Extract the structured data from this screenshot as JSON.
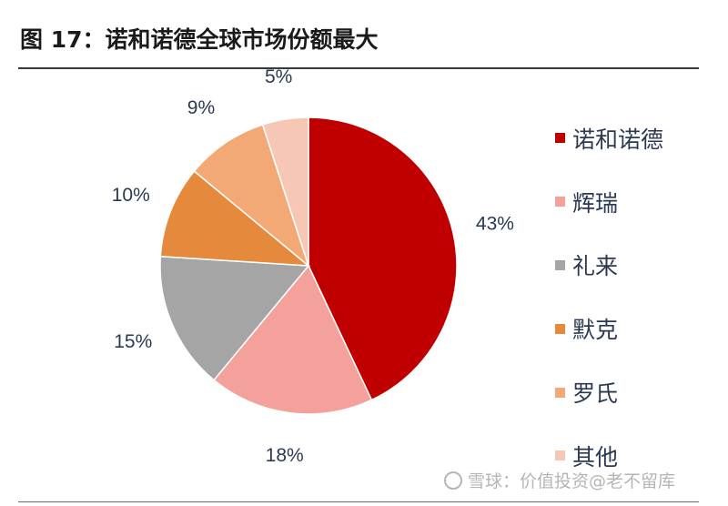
{
  "figure": {
    "title": "图 17：诺和诺德全球市场份额最大"
  },
  "chart_data": {
    "type": "pie",
    "title": "图 17：诺和诺德全球市场份额最大",
    "slices": [
      {
        "label": "诺和诺德",
        "value": 43,
        "display": "43%",
        "color": "#c00000"
      },
      {
        "label": "辉瑞",
        "value": 18,
        "display": "18%",
        "color": "#f4a19b"
      },
      {
        "label": "礼来",
        "value": 15,
        "display": "15%",
        "color": "#a5a5a5"
      },
      {
        "label": "默克",
        "value": 10,
        "display": "10%",
        "color": "#e58a3c"
      },
      {
        "label": "罗氏",
        "value": 9,
        "display": "9%",
        "color": "#f3a975"
      },
      {
        "label": "其他",
        "value": 5,
        "display": "5%",
        "color": "#f7c7b5"
      }
    ],
    "legend_position": "right",
    "label_color": "#2b3a52"
  },
  "watermark": {
    "text": "雪球：价值投资@老不留库"
  }
}
